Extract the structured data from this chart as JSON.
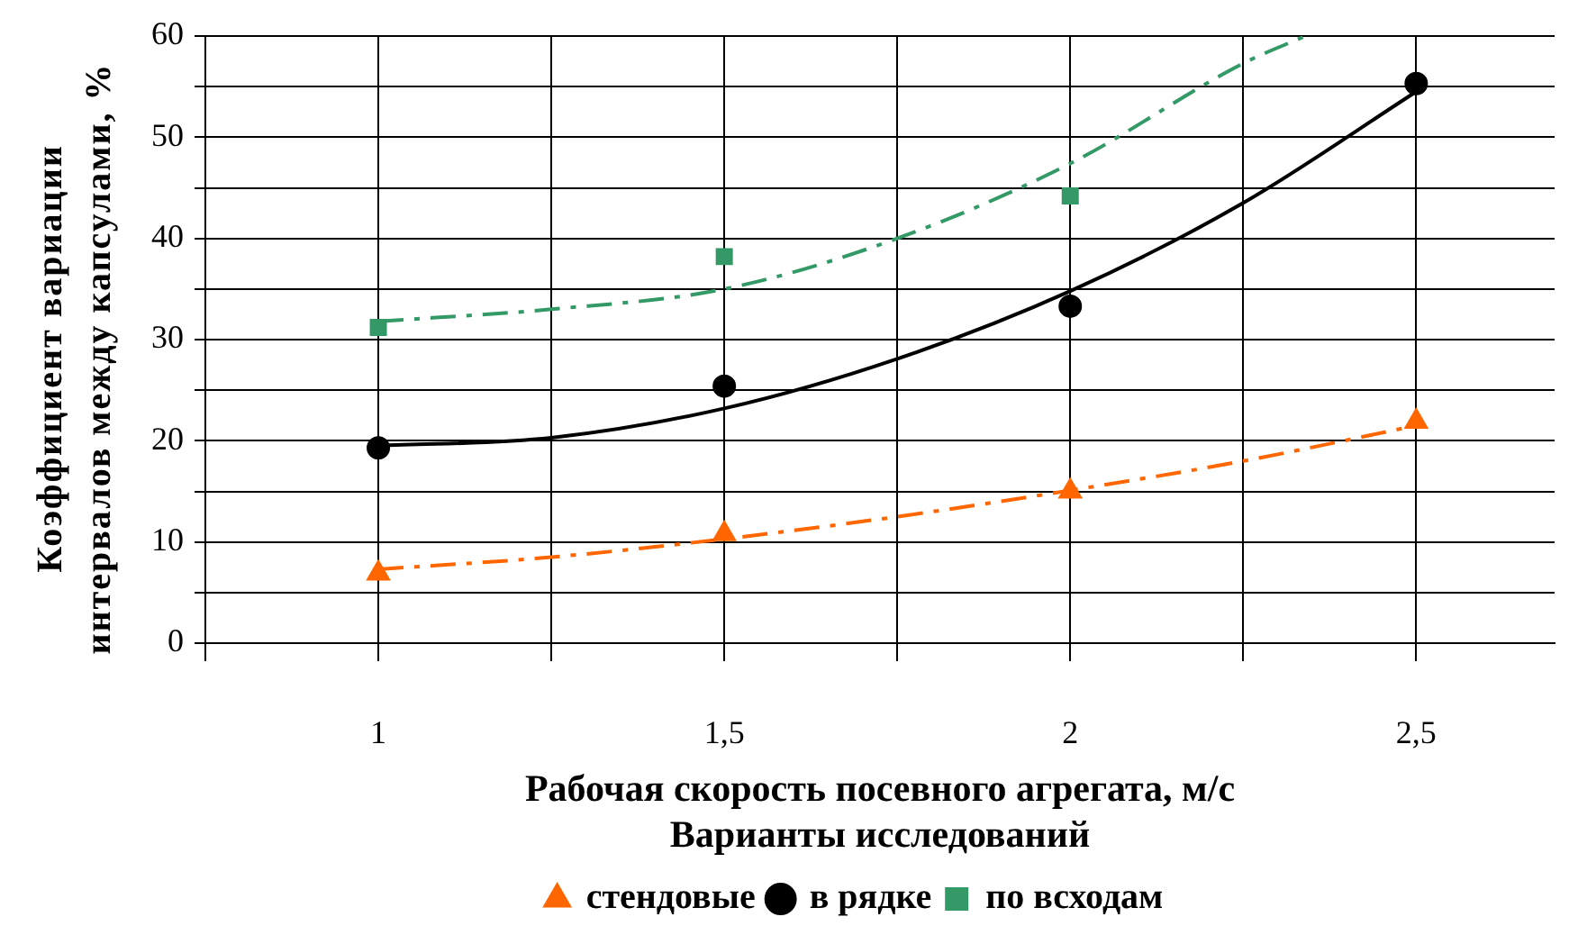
{
  "chart_data": {
    "type": "scatter",
    "xlabel": "Рабочая скорость посевного агрегата, м/с",
    "ylabel": "Коэффициент вариации интервалов между капсулами, %",
    "annotations": [
      "Варианты исследований"
    ],
    "xlim": [
      0.75,
      2.7
    ],
    "xticks": [
      {
        "value": 0.75,
        "label": null
      },
      1,
      {
        "value": 1.25,
        "label": null
      },
      {
        "value": 1.5,
        "label": "1,5"
      },
      {
        "value": 1.75,
        "label": null
      },
      2,
      {
        "value": 2.25,
        "label": null
      },
      {
        "value": 2.5,
        "label": "2,5"
      }
    ],
    "ylim": [
      0,
      60
    ],
    "yticks": [
      0,
      {
        "value": 5,
        "label": null
      },
      10,
      {
        "value": 15,
        "label": null
      },
      20,
      {
        "value": 25,
        "label": null
      },
      30,
      {
        "value": 35,
        "label": null
      },
      40,
      {
        "value": 45,
        "label": null
      },
      50,
      {
        "value": 55,
        "label": null
      },
      60
    ],
    "grid": true,
    "legend": "bottom",
    "series": [
      {
        "name": "стендовые",
        "type": "scatter",
        "marker": "triangle",
        "color": "#ff6600",
        "x": [
          1,
          1.5,
          2,
          2.5
        ],
        "values": [
          6.9,
          10.8,
          15,
          21.9
        ]
      },
      {
        "name": "в рядке",
        "type": "scatter",
        "marker": "circle",
        "color": "#000000",
        "x": [
          1,
          1.5,
          2,
          2.5
        ],
        "values": [
          19.3,
          25.4,
          33.3,
          55.3
        ]
      },
      {
        "name": "по всходам",
        "type": "scatter",
        "marker": "square",
        "color": "#339966",
        "x": [
          1,
          1.5,
          2
        ],
        "values": [
          31.2,
          38.2,
          44.2
        ]
      },
      {
        "type": "line",
        "line_style": "dashed",
        "marker": "none",
        "color": "#ff6600",
        "x": [
          1,
          1.25,
          1.5,
          1.75,
          2,
          2.25,
          2.5
        ],
        "values": [
          7.3,
          8.5,
          10.3,
          12.5,
          15.1,
          18,
          21.5
        ]
      },
      {
        "type": "line",
        "line_style": "solid",
        "marker": "none",
        "color": "#000000",
        "x": [
          1,
          1.25,
          1.5,
          1.75,
          2,
          2.25,
          2.5
        ],
        "values": [
          19.5,
          20.3,
          23.2,
          28.1,
          34.8,
          43.5,
          54.5
        ]
      },
      {
        "type": "line",
        "line_style": "dashed",
        "marker": "none",
        "color": "#339966",
        "x": [
          1,
          1.25,
          1.5,
          1.75,
          2,
          2.25,
          2.34
        ],
        "values": [
          31.8,
          33,
          35,
          40,
          47.4,
          57.3,
          60
        ]
      }
    ]
  }
}
